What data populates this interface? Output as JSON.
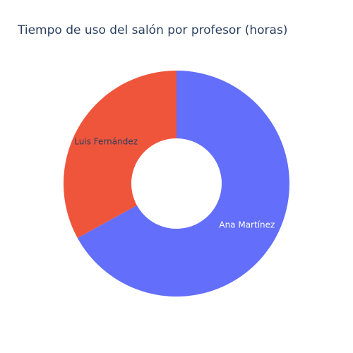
{
  "chart_data": {
    "type": "pie",
    "title": "Tiempo de uso del salón por profesor (horas)",
    "hole": 0.4,
    "categories": [
      "Ana Martínez",
      "Luis Fernández"
    ],
    "values": [
      67,
      33
    ],
    "colors": [
      "#636efa",
      "#ef553b"
    ],
    "label_colors": [
      "#ffffff",
      "#2a3f5f"
    ],
    "direction": "clockwise",
    "rotation": 90
  }
}
